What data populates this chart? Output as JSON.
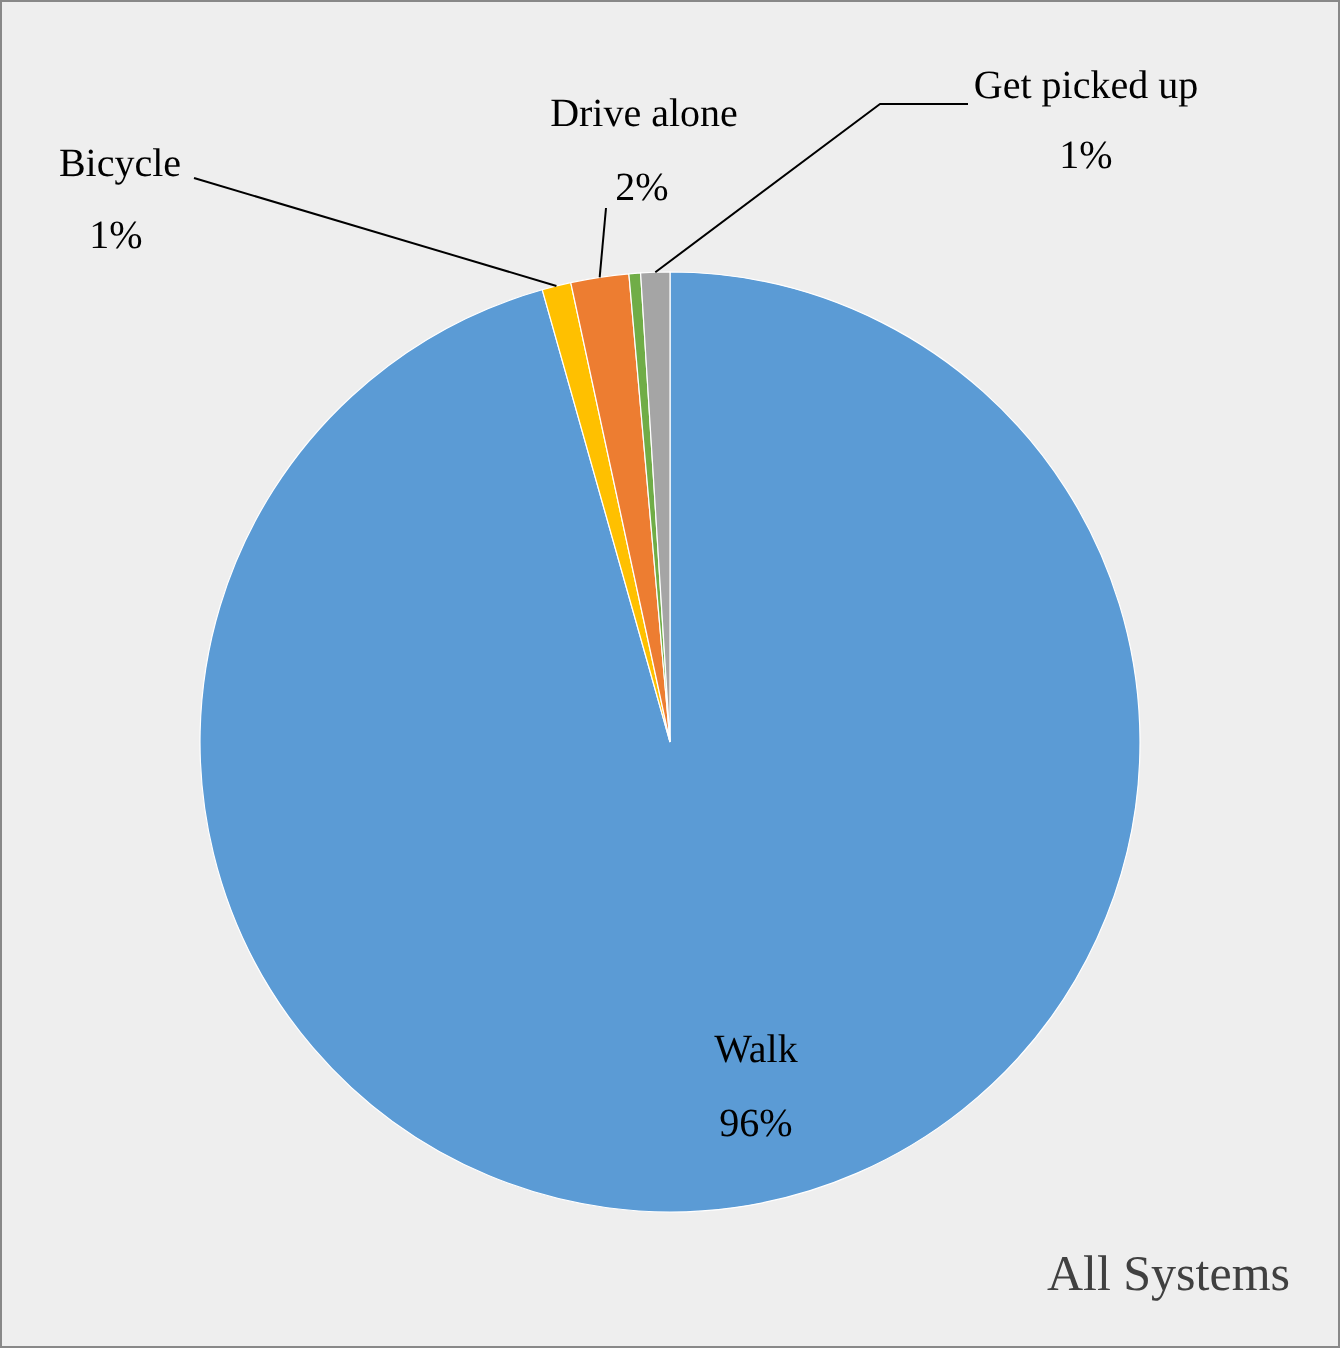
{
  "chart_data": {
    "type": "pie",
    "title": "All Systems",
    "categories": [
      "Walk",
      "Bicycle",
      "Drive alone",
      null,
      "Get picked up"
    ],
    "values": [
      96,
      1,
      2,
      0.4,
      1
    ],
    "value_labels": [
      "96%",
      "1%",
      "2%",
      null,
      "1%"
    ],
    "colors": [
      "#5b9bd5",
      "#ffc000",
      "#ed7d31",
      "#70ad47",
      "#a5a5a5"
    ]
  }
}
